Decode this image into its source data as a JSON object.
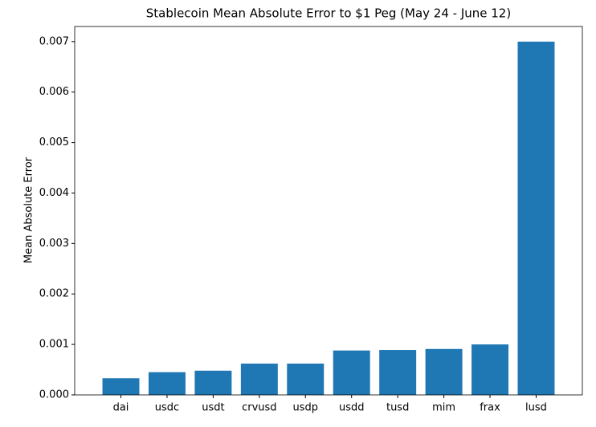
{
  "chart_data": {
    "type": "bar",
    "title": "Stablecoin Mean Absolute Error to $1 Peg (May 24 - June 12)",
    "y_label": "Mean Absolute Error",
    "categories": [
      "dai",
      "usdc",
      "usdt",
      "crvusd",
      "usdp",
      "usdd",
      "tusd",
      "mim",
      "frax",
      "lusd"
    ],
    "values": [
      0.00033,
      0.00045,
      0.00048,
      0.00062,
      0.00062,
      0.00088,
      0.00089,
      0.00091,
      0.001,
      0.007
    ],
    "color": "#1f77b4",
    "ylim": [
      0,
      0.0073
    ],
    "yticks": [
      {
        "value": 0,
        "label": "0.000"
      },
      {
        "value": 0.001,
        "label": "0.001"
      },
      {
        "value": 0.002,
        "label": "0.002"
      },
      {
        "value": 0.003,
        "label": "0.003"
      },
      {
        "value": 0.004,
        "label": "0.004"
      },
      {
        "value": 0.005,
        "label": "0.005"
      },
      {
        "value": 0.006,
        "label": "0.006"
      },
      {
        "value": 0.007,
        "label": "0.007"
      }
    ]
  }
}
